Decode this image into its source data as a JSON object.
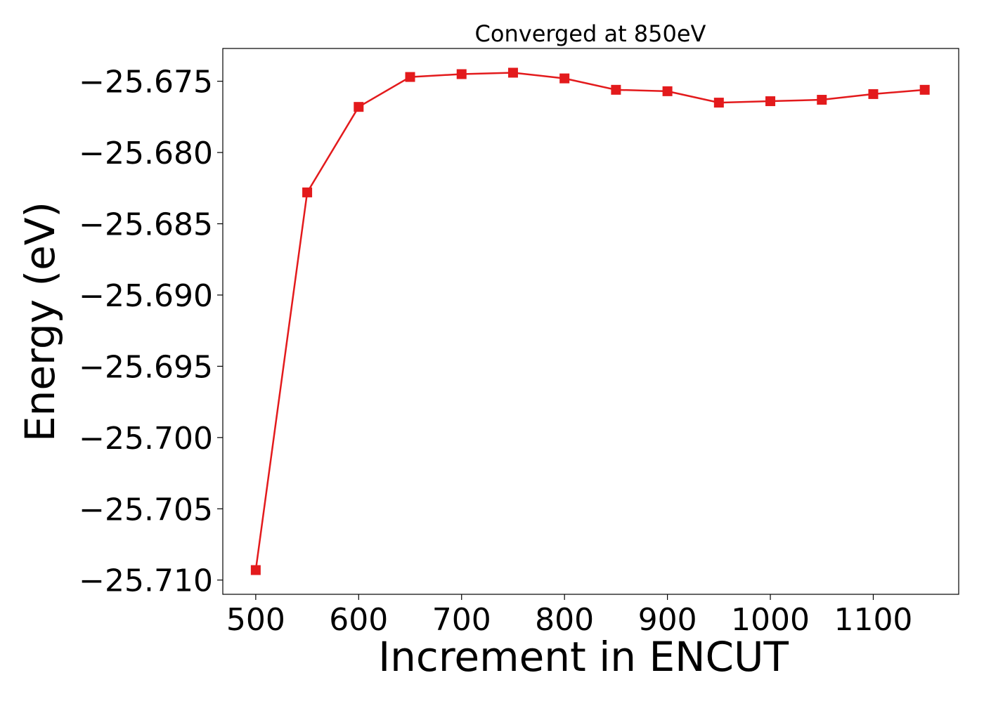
{
  "chart_data": {
    "type": "line",
    "title": "Converged at 850eV",
    "xlabel": "Increment in ENCUT",
    "ylabel": "Energy (eV)",
    "x": [
      500,
      550,
      600,
      650,
      700,
      750,
      800,
      850,
      900,
      950,
      1000,
      1050,
      1100,
      1150
    ],
    "series": [
      {
        "values": [
          -25.7093,
          -25.6828,
          -25.6768,
          -25.6747,
          -25.6745,
          -25.6744,
          -25.6748,
          -25.6756,
          -25.6757,
          -25.6765,
          -25.6764,
          -25.6763,
          -25.6759,
          -25.6756
        ],
        "color": "#e31a1c",
        "marker": "square"
      }
    ],
    "xlim": [
      468,
      1183
    ],
    "ylim": [
      -25.711,
      -25.6727
    ],
    "xticks": [
      500,
      600,
      700,
      800,
      900,
      1000,
      1100
    ],
    "xtick_labels": [
      "500",
      "600",
      "700",
      "800",
      "900",
      "1000",
      "1100"
    ],
    "yticks": [
      -25.71,
      -25.705,
      -25.7,
      -25.695,
      -25.69,
      -25.685,
      -25.68,
      -25.675
    ],
    "ytick_labels": [
      "−25.710",
      "−25.705",
      "−25.700",
      "−25.695",
      "−25.690",
      "−25.685",
      "−25.680",
      "−25.675"
    ],
    "grid": false,
    "legend": false
  }
}
